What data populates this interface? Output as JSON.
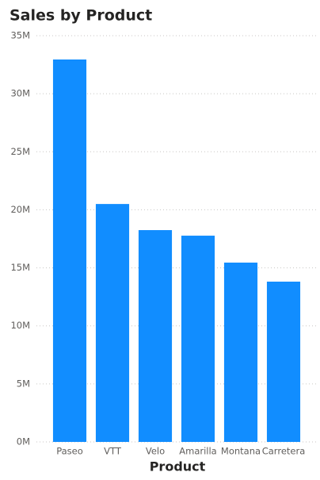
{
  "chart_data": {
    "type": "bar",
    "title": "Sales by Product",
    "x_label": "Product",
    "categories": [
      "Paseo",
      "VTT",
      "Velo",
      "Amarilla",
      "Montana",
      "Carretera"
    ],
    "values": [
      32950000,
      20500000,
      18250000,
      17770000,
      15450000,
      13810000
    ],
    "color": "#118dff",
    "ylim": [
      0,
      35000000
    ],
    "yticks": [
      {
        "value": 0,
        "label": "0M"
      },
      {
        "value": 5000000,
        "label": "5M"
      },
      {
        "value": 10000000,
        "label": "10M"
      },
      {
        "value": 15000000,
        "label": "15M"
      },
      {
        "value": 20000000,
        "label": "20M"
      },
      {
        "value": 25000000,
        "label": "25M"
      },
      {
        "value": 30000000,
        "label": "30M"
      },
      {
        "value": 35000000,
        "label": "35M"
      }
    ],
    "grid": true
  }
}
